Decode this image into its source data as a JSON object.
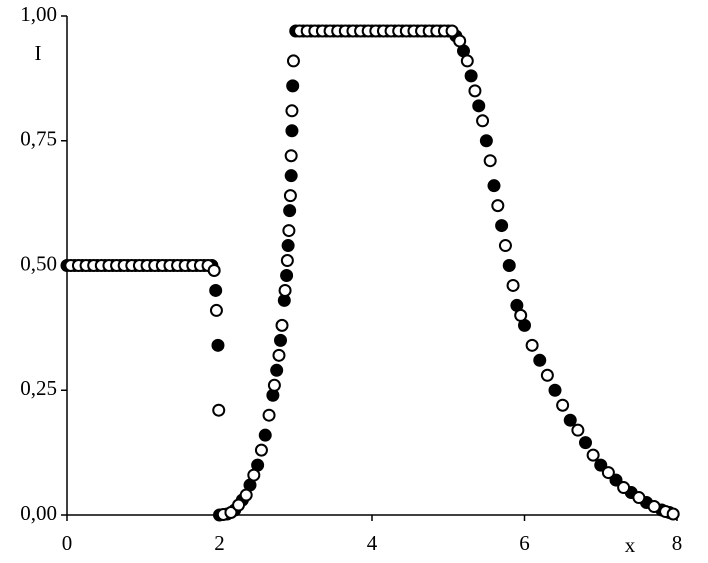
{
  "chart_data": {
    "type": "scatter",
    "x_label": "x",
    "y_label": "I",
    "xlim": [
      0,
      8
    ],
    "ylim": [
      0,
      1
    ],
    "xticks": [
      0,
      2,
      4,
      6,
      8
    ],
    "yticks": [
      {
        "value": 0,
        "label": "0,00"
      },
      {
        "value": 0.25,
        "label": "0,25"
      },
      {
        "value": 0.5,
        "label": "0,50"
      },
      {
        "value": 0.75,
        "label": "0,75"
      },
      {
        "value": 1,
        "label": "1,00"
      }
    ],
    "grid": false,
    "series": [
      {
        "color": "#000000",
        "marker": "filled",
        "x": [
          0,
          0.1,
          0.2,
          0.3,
          0.4,
          0.5,
          0.6,
          0.7,
          0.8,
          0.9,
          1,
          1.1,
          1.2,
          1.3,
          1.4,
          1.5,
          1.6,
          1.7,
          1.8,
          1.9,
          1.95,
          1.98,
          2,
          2.1,
          2.2,
          2.3,
          2.4,
          2.5,
          2.6,
          2.7,
          2.75,
          2.8,
          2.85,
          2.88,
          2.9,
          2.92,
          2.94,
          2.95,
          2.96,
          3,
          3.1,
          3.2,
          3.3,
          3.4,
          3.5,
          3.6,
          3.7,
          3.8,
          3.9,
          4,
          4.1,
          4.2,
          4.3,
          4.4,
          4.5,
          4.6,
          4.7,
          4.8,
          4.9,
          5,
          5.1,
          5.2,
          5.3,
          5.4,
          5.5,
          5.6,
          5.7,
          5.8,
          5.9,
          6,
          6.2,
          6.4,
          6.6,
          6.8,
          7,
          7.2,
          7.4,
          7.6,
          7.8,
          7.9
        ],
        "values": [
          0.5,
          0.5,
          0.5,
          0.5,
          0.5,
          0.5,
          0.5,
          0.5,
          0.5,
          0.5,
          0.5,
          0.5,
          0.5,
          0.5,
          0.5,
          0.5,
          0.5,
          0.5,
          0.5,
          0.5,
          0.45,
          0.34,
          0,
          0.002,
          0.01,
          0.03,
          0.06,
          0.1,
          0.16,
          0.24,
          0.29,
          0.35,
          0.43,
          0.48,
          0.54,
          0.61,
          0.68,
          0.77,
          0.86,
          0.97,
          0.97,
          0.97,
          0.97,
          0.97,
          0.97,
          0.97,
          0.97,
          0.97,
          0.97,
          0.97,
          0.97,
          0.97,
          0.97,
          0.97,
          0.97,
          0.97,
          0.97,
          0.97,
          0.97,
          0.97,
          0.96,
          0.93,
          0.88,
          0.82,
          0.75,
          0.66,
          0.58,
          0.5,
          0.42,
          0.38,
          0.31,
          0.25,
          0.19,
          0.145,
          0.1,
          0.07,
          0.045,
          0.025,
          0.01,
          0.005
        ]
      },
      {
        "color": "#000000",
        "marker": "open",
        "x": [
          0.05,
          0.15,
          0.25,
          0.35,
          0.45,
          0.55,
          0.65,
          0.75,
          0.85,
          0.95,
          1.05,
          1.15,
          1.25,
          1.35,
          1.45,
          1.55,
          1.65,
          1.75,
          1.85,
          1.93,
          1.96,
          1.99,
          2.05,
          2.15,
          2.25,
          2.35,
          2.45,
          2.55,
          2.65,
          2.72,
          2.78,
          2.82,
          2.86,
          2.89,
          2.91,
          2.93,
          2.94,
          2.95,
          2.97,
          3.05,
          3.15,
          3.25,
          3.35,
          3.45,
          3.55,
          3.65,
          3.75,
          3.85,
          3.95,
          4.05,
          4.15,
          4.25,
          4.35,
          4.45,
          4.55,
          4.65,
          4.75,
          4.85,
          4.95,
          5.05,
          5.15,
          5.25,
          5.35,
          5.45,
          5.55,
          5.65,
          5.75,
          5.85,
          5.95,
          6.1,
          6.3,
          6.5,
          6.7,
          6.9,
          7.1,
          7.3,
          7.5,
          7.7,
          7.85,
          7.95
        ],
        "values": [
          0.5,
          0.5,
          0.5,
          0.5,
          0.5,
          0.5,
          0.5,
          0.5,
          0.5,
          0.5,
          0.5,
          0.5,
          0.5,
          0.5,
          0.5,
          0.5,
          0.5,
          0.5,
          0.5,
          0.49,
          0.41,
          0.21,
          0.001,
          0.005,
          0.02,
          0.04,
          0.08,
          0.13,
          0.2,
          0.26,
          0.32,
          0.38,
          0.45,
          0.51,
          0.57,
          0.64,
          0.72,
          0.81,
          0.91,
          0.97,
          0.97,
          0.97,
          0.97,
          0.97,
          0.97,
          0.97,
          0.97,
          0.97,
          0.97,
          0.97,
          0.97,
          0.97,
          0.97,
          0.97,
          0.97,
          0.97,
          0.97,
          0.97,
          0.97,
          0.97,
          0.95,
          0.91,
          0.85,
          0.79,
          0.71,
          0.62,
          0.54,
          0.46,
          0.4,
          0.34,
          0.28,
          0.22,
          0.17,
          0.12,
          0.085,
          0.055,
          0.035,
          0.017,
          0.007,
          0.002
        ]
      }
    ]
  }
}
